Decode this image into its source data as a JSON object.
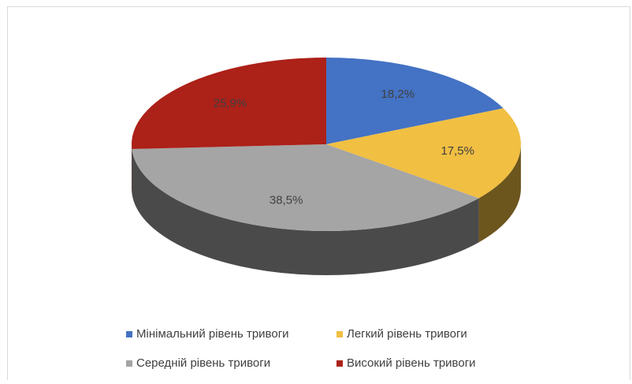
{
  "chart_data": {
    "type": "pie3d",
    "categories": [
      "Мінімальний рівень тривоги",
      "Легкий рівень тривоги",
      "Середній рівень тривоги",
      "Високий рівень тривоги"
    ],
    "values": [
      18.2,
      17.5,
      38.5,
      25.9
    ],
    "value_labels": [
      "18,2%",
      "17,5%",
      "38,5%",
      "25,9%"
    ],
    "colors": [
      "#4472c4",
      "#f1bf42",
      "#a5a5a5",
      "#ac2118"
    ],
    "legend": "bottom"
  }
}
